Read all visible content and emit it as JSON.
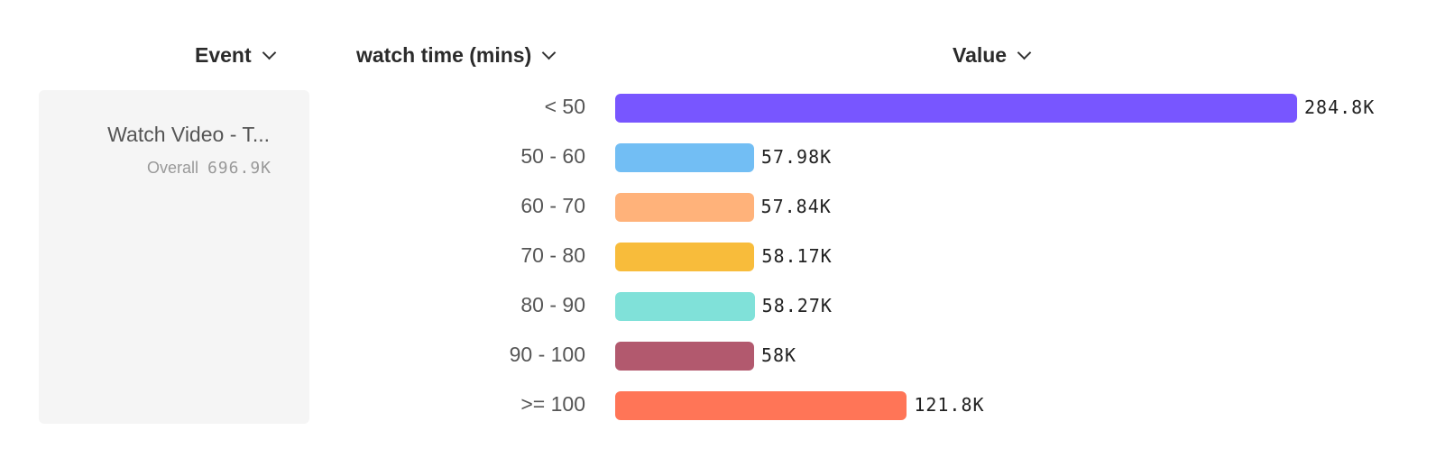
{
  "headers": {
    "event": "Event",
    "breakdown": "watch time (mins)",
    "value": "Value"
  },
  "event_card": {
    "name": "Watch Video - T...",
    "overall_label": "Overall",
    "overall_value": "696.9K"
  },
  "chart_data": {
    "type": "bar",
    "orientation": "horizontal",
    "categories": [
      "< 50",
      "50 - 60",
      "60 - 70",
      "70 - 80",
      "80 - 90",
      "90 - 100",
      ">= 100"
    ],
    "values": [
      284800,
      57980,
      57840,
      58170,
      58270,
      58000,
      121800
    ],
    "labels": [
      "284.8K",
      "57.98K",
      "57.84K",
      "58.17K",
      "58.27K",
      "58K",
      "121.8K"
    ],
    "colors": [
      "#7856ff",
      "#72bef4",
      "#ffb27a",
      "#f8bc3b",
      "#80e1d9",
      "#b2596e",
      "#ff7557"
    ],
    "xlim": [
      0,
      284800
    ],
    "grid": false
  }
}
